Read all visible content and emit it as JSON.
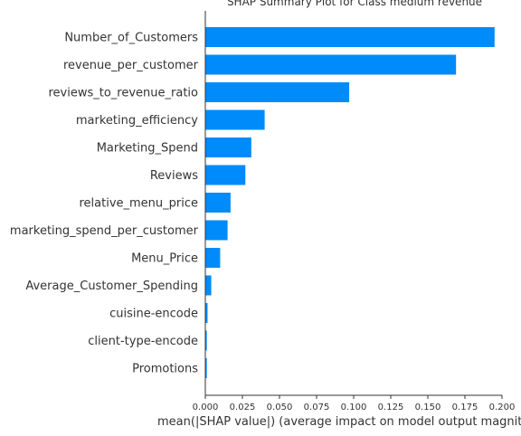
{
  "chart_data": {
    "type": "bar",
    "orientation": "horizontal",
    "title": "SHAP Summary Plot for Class medium revenue",
    "xlabel": "mean(|SHAP value|) (average impact on model output magnitude)",
    "ylabel": "",
    "categories": [
      "Number_of_Customers",
      "revenue_per_customer",
      "reviews_to_revenue_ratio",
      "marketing_efficiency",
      "Marketing_Spend",
      "Reviews",
      "relative_menu_price",
      "marketing_spend_per_customer",
      "Menu_Price",
      "Average_Customer_Spending",
      "cuisine-encode",
      "client-type-encode",
      "Promotions"
    ],
    "values": [
      0.195,
      0.169,
      0.097,
      0.04,
      0.031,
      0.027,
      0.017,
      0.015,
      0.01,
      0.004,
      0.0015,
      0.001,
      0.001
    ],
    "xlim": [
      0,
      0.2
    ],
    "xticks": [
      "0.000",
      "0.025",
      "0.050",
      "0.075",
      "0.100",
      "0.125",
      "0.150",
      "0.175",
      "0.200"
    ],
    "bar_color": "#008bfb",
    "grid": false
  }
}
